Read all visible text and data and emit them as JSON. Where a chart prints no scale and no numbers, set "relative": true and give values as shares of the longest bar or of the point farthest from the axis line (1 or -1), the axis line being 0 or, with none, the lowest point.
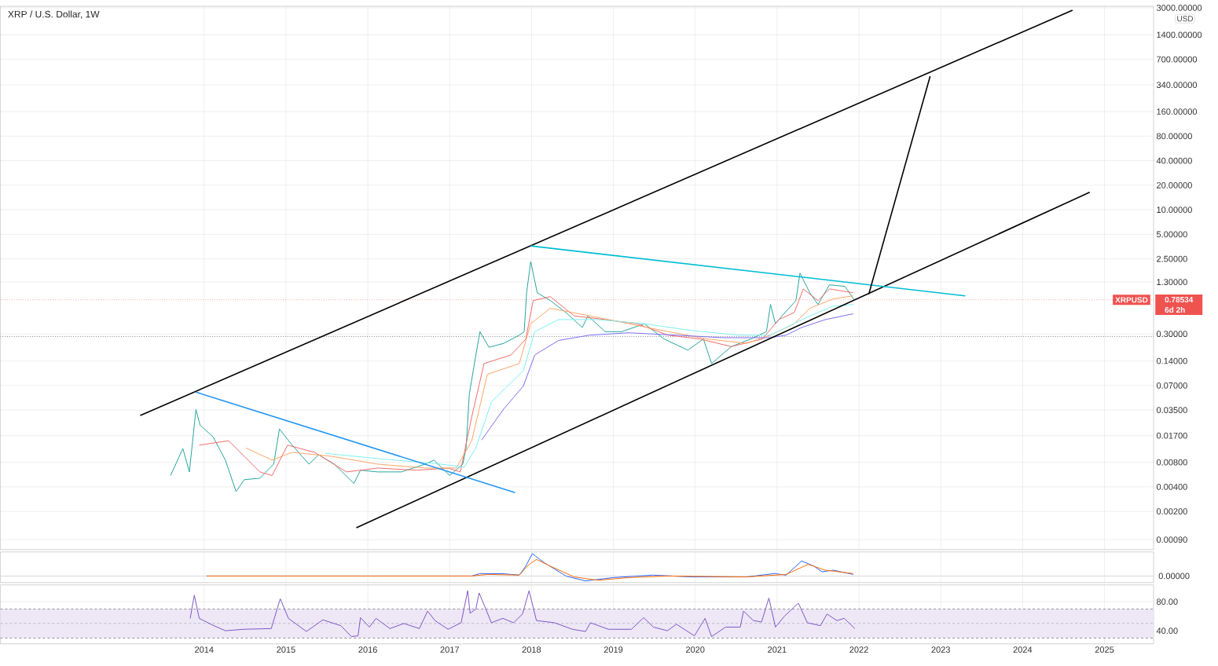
{
  "chart_data": [
    {
      "type": "line",
      "title": "XRP / U.S. Dollar, 1W",
      "log": "y",
      "grid": true,
      "tick_labels": "y",
      "marker": "none",
      "line_style": "solid",
      "xlim": [
        2011.51,
        2025.6
      ],
      "xticks": [
        2014,
        2015,
        2016,
        2017,
        2018,
        2019,
        2020,
        2021,
        2022,
        2023,
        2024,
        2025
      ],
      "ylim": [
        0.00068,
        3130
      ],
      "yticks": [
        {
          "value": 0.0009,
          "label": "0.00090"
        },
        {
          "value": 0.002,
          "label": "0.00200"
        },
        {
          "value": 0.004,
          "label": "0.00400"
        },
        {
          "value": 0.008,
          "label": "0.00800"
        },
        {
          "value": 0.017,
          "label": "0.01700"
        },
        {
          "value": 0.035,
          "label": "0.03500"
        },
        {
          "value": 0.07,
          "label": "0.07000"
        },
        {
          "value": 0.14,
          "label": "0.14000"
        },
        {
          "value": 0.3,
          "label": "0.30000"
        },
        {
          "value": 1.3,
          "label": "1.30000"
        },
        {
          "value": 2.5,
          "label": "2.50000"
        },
        {
          "value": 5,
          "label": "5.00000"
        },
        {
          "value": 10,
          "label": "10.00000"
        },
        {
          "value": 20,
          "label": "20.00000"
        },
        {
          "value": 40,
          "label": "40.00000"
        },
        {
          "value": 80,
          "label": "80.00000"
        },
        {
          "value": 160,
          "label": "160.00000"
        },
        {
          "value": 340,
          "label": "340.00000"
        },
        {
          "value": 700,
          "label": "700.00000"
        },
        {
          "value": 1400,
          "label": "1400.00000"
        },
        {
          "value": 3000,
          "label": "3000.00000"
        }
      ],
      "ref_lines": [
        {
          "axis": "y",
          "value": 0.78534,
          "label": "XRPUSD",
          "color": "#ef5350",
          "line_style": "dotted"
        },
        {
          "axis": "y",
          "value": 0.28,
          "color": "#555555",
          "line_style": "dotted"
        }
      ],
      "ylabel": "USD",
      "annotations": [
        "0.78534",
        "6d 2h"
      ],
      "series": [
        {
          "color": "#26a69a",
          "x": [
            2013.59,
            2013.74,
            2013.82,
            2013.9,
            2013.95,
            2014.11,
            2014.26,
            2014.39,
            2014.49,
            2014.68,
            2014.85,
            2014.92,
            2015.07,
            2015.28,
            2015.4,
            2015.59,
            2015.83,
            2015.91,
            2016.12,
            2016.41,
            2016.7,
            2016.81,
            2017.0,
            2017.16,
            2017.2,
            2017.24,
            2017.32,
            2017.37,
            2017.48,
            2017.66,
            2017.85,
            2017.91,
            2017.94,
            2017.99,
            2018.07,
            2018.23,
            2018.42,
            2018.62,
            2018.69,
            2018.9,
            2019.1,
            2019.38,
            2019.62,
            2019.91,
            2020.1,
            2020.2,
            2020.44,
            2020.68,
            2020.87,
            2020.92,
            2020.98,
            2021.06,
            2021.23,
            2021.28,
            2021.4,
            2021.5,
            2021.64,
            2021.83,
            2021.94
          ],
          "values": [
            0.0055,
            0.0118,
            0.0061,
            0.0356,
            0.0229,
            0.0164,
            0.0085,
            0.0035,
            0.0049,
            0.0051,
            0.0076,
            0.0205,
            0.0132,
            0.0076,
            0.0099,
            0.0076,
            0.0044,
            0.0064,
            0.0061,
            0.0061,
            0.0076,
            0.0085,
            0.0055,
            0.0076,
            0.0118,
            0.055,
            0.166,
            0.32,
            0.206,
            0.23,
            0.29,
            0.32,
            0.96,
            2.32,
            0.96,
            0.77,
            0.55,
            0.36,
            0.5,
            0.32,
            0.32,
            0.4,
            0.26,
            0.19,
            0.26,
            0.13,
            0.21,
            0.26,
            0.32,
            0.69,
            0.4,
            0.5,
            0.77,
            1.67,
            0.96,
            0.69,
            1.2,
            1.15,
            0.79
          ]
        },
        {
          "color": "#f26b6b",
          "x": [
            2013.94,
            2014.3,
            2014.68,
            2014.83,
            2015.02,
            2015.35,
            2015.74,
            2016.12,
            2016.6,
            2016.98,
            2017.13,
            2017.27,
            2017.42,
            2017.75,
            2017.93,
            2018.02,
            2018.23,
            2018.52,
            2018.9,
            2019.29,
            2019.67,
            2020.06,
            2020.44,
            2020.82,
            2021.02,
            2021.21,
            2021.32,
            2021.5,
            2021.64,
            2021.93
          ],
          "values": [
            0.013,
            0.0147,
            0.0061,
            0.0055,
            0.013,
            0.0106,
            0.0061,
            0.0068,
            0.0064,
            0.0068,
            0.0061,
            0.029,
            0.13,
            0.166,
            0.26,
            0.77,
            0.86,
            0.5,
            0.45,
            0.4,
            0.29,
            0.26,
            0.21,
            0.26,
            0.45,
            0.55,
            1.07,
            0.77,
            1.07,
            0.96
          ]
        },
        {
          "color": "#ffa566",
          "x": [
            2014.51,
            2014.83,
            2015.07,
            2015.55,
            2016.12,
            2016.7,
            2017.08,
            2017.27,
            2017.46,
            2017.85,
            2017.99,
            2018.23,
            2018.71,
            2019.19,
            2019.67,
            2020.15,
            2020.63,
            2020.92,
            2021.21,
            2021.4,
            2021.69,
            2021.93
          ],
          "values": [
            0.012,
            0.0085,
            0.0106,
            0.0095,
            0.0076,
            0.0068,
            0.0068,
            0.0147,
            0.096,
            0.13,
            0.4,
            0.62,
            0.5,
            0.4,
            0.32,
            0.26,
            0.23,
            0.29,
            0.4,
            0.62,
            0.81,
            0.88
          ]
        },
        {
          "color": "#80eef0",
          "x": [
            2015.48,
            2016.12,
            2016.89,
            2017.18,
            2017.32,
            2017.51,
            2017.9,
            2018.04,
            2018.33,
            2018.81,
            2019.38,
            2019.96,
            2020.54,
            2020.92,
            2021.11,
            2021.4,
            2021.69,
            2021.93
          ],
          "values": [
            0.0103,
            0.0089,
            0.0076,
            0.007,
            0.012,
            0.044,
            0.107,
            0.32,
            0.45,
            0.45,
            0.4,
            0.33,
            0.29,
            0.29,
            0.36,
            0.5,
            0.66,
            0.69
          ]
        },
        {
          "color": "#7b6ef6",
          "x": [
            2017.39,
            2017.66,
            2017.9,
            2018.04,
            2018.33,
            2018.71,
            2019.19,
            2019.77,
            2020.34,
            2020.92,
            2021.11,
            2021.3,
            2021.59,
            2021.93
          ],
          "values": [
            0.015,
            0.036,
            0.069,
            0.166,
            0.25,
            0.29,
            0.31,
            0.29,
            0.27,
            0.27,
            0.29,
            0.36,
            0.45,
            0.53
          ]
        },
        {
          "color": "#000000",
          "x": [
            2013.22,
            2024.61
          ],
          "values": [
            0.03,
            2800
          ]
        },
        {
          "color": "#000000",
          "x": [
            2015.86,
            2024.82
          ],
          "values": [
            0.00126,
            16.4
          ]
        },
        {
          "color": "#2196f3",
          "x": [
            2013.9,
            2017.8
          ],
          "values": [
            0.058,
            0.0034
          ]
        },
        {
          "color": "#00bcd4",
          "x": [
            2017.99,
            2023.3
          ],
          "values": [
            3.6,
            0.88
          ]
        },
        {
          "color": "#000000",
          "x": [
            2022.12,
            2022.87
          ],
          "values": [
            0.92,
            435
          ]
        }
      ]
    },
    {
      "type": "line",
      "relative": true,
      "grid": "x",
      "tick_labels": false,
      "marker": "none",
      "line_style": "solid",
      "xlim": [
        2011.51,
        2025.6
      ],
      "ref_lines": [
        {
          "axis": "y",
          "value": 0,
          "color": "#d1d4dc"
        }
      ],
      "annotations": [
        "0.00000"
      ],
      "series": [
        {
          "color": "#2962ff",
          "x": [
            2014.03,
            2017.27,
            2017.37,
            2017.66,
            2017.85,
            2017.93,
            2018.01,
            2018.14,
            2018.42,
            2018.66,
            2019.0,
            2019.48,
            2019.96,
            2020.63,
            2020.97,
            2021.11,
            2021.3,
            2021.45,
            2021.55,
            2021.69,
            2021.93
          ],
          "values": [
            0,
            0,
            0.11,
            0.1,
            0.04,
            0.44,
            1,
            0.63,
            0,
            -0.22,
            -0.07,
            0.04,
            -0.04,
            -0.04,
            0.11,
            0.04,
            0.67,
            0.44,
            0.19,
            0.26,
            0.07
          ]
        },
        {
          "color": "#ff6d00",
          "x": [
            2014.03,
            2017.27,
            2017.46,
            2017.85,
            2017.97,
            2018.06,
            2018.23,
            2018.52,
            2018.81,
            2019.19,
            2019.67,
            2020.63,
            2021.11,
            2021.38,
            2021.59,
            2021.93
          ],
          "values": [
            0,
            0,
            0.07,
            0.04,
            0.52,
            0.74,
            0.44,
            -0.04,
            -0.19,
            -0.07,
            0,
            -0.04,
            0.07,
            0.52,
            0.26,
            0.11
          ]
        }
      ]
    },
    {
      "type": "line",
      "grid": true,
      "marker": "none",
      "line_style": "solid",
      "xlim": [
        2011.51,
        2025.6
      ],
      "xticks": [
        2014,
        2015,
        2016,
        2017,
        2018,
        2019,
        2020,
        2021,
        2022,
        2023,
        2024,
        2025
      ],
      "ylim": [
        22,
        103
      ],
      "yticks": [
        {
          "value": 40,
          "label": "40.00"
        },
        {
          "value": 80,
          "label": "80.00"
        }
      ],
      "bands": [
        {
          "axis": "y",
          "from": 30,
          "to": 70,
          "color": "#ede7f6"
        }
      ],
      "ref_lines": [
        {
          "axis": "y",
          "value": 70,
          "color": "#787b86",
          "line_style": "dashed"
        },
        {
          "axis": "y",
          "value": 50,
          "color": "#b0b3bd",
          "line_style": "dashed"
        },
        {
          "axis": "y",
          "value": 30,
          "color": "#787b86",
          "line_style": "dashed"
        }
      ],
      "series": [
        {
          "color": "#7e57c2",
          "x": [
            2013.83,
            2013.88,
            2013.94,
            2014.1,
            2014.26,
            2014.48,
            2014.82,
            2014.93,
            2015.03,
            2015.25,
            2015.45,
            2015.67,
            2015.8,
            2015.88,
            2015.91,
            2016.02,
            2016.1,
            2016.27,
            2016.44,
            2016.63,
            2016.73,
            2016.82,
            2016.98,
            2017.14,
            2017.22,
            2017.25,
            2017.32,
            2017.36,
            2017.51,
            2017.65,
            2017.78,
            2017.89,
            2017.97,
            2018.06,
            2018.28,
            2018.5,
            2018.66,
            2018.72,
            2018.94,
            2019.22,
            2019.37,
            2019.49,
            2019.66,
            2019.77,
            2019.99,
            2020.12,
            2020.2,
            2020.37,
            2020.55,
            2020.59,
            2020.71,
            2020.81,
            2020.9,
            2020.98,
            2021.09,
            2021.26,
            2021.37,
            2021.53,
            2021.61,
            2021.73,
            2021.82,
            2021.95
          ],
          "values": [
            57,
            89,
            57,
            48,
            40,
            42,
            43,
            84,
            57,
            39,
            55,
            47,
            32,
            33,
            58,
            45,
            57,
            43,
            50,
            43,
            67,
            54,
            42,
            51,
            95,
            64,
            70,
            92,
            51,
            57,
            51,
            63,
            95,
            54,
            51,
            42,
            39,
            51,
            42,
            42,
            58,
            45,
            40,
            49,
            33,
            57,
            32,
            45,
            45,
            67,
            54,
            52,
            85,
            45,
            60,
            78,
            51,
            47,
            63,
            54,
            57,
            43
          ]
        }
      ]
    }
  ]
}
